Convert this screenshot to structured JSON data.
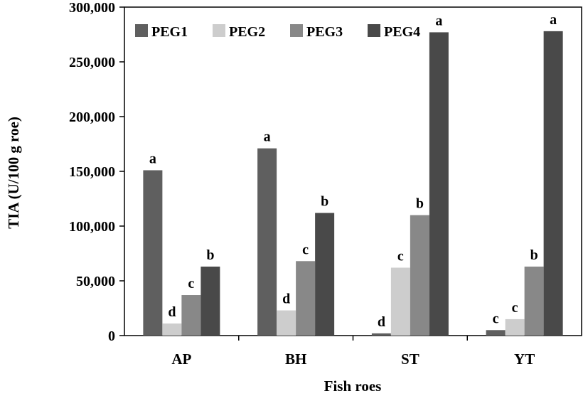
{
  "chart_data": {
    "type": "bar",
    "xlabel": "Fish roes",
    "ylabel": "TIA (U/100 g roe)",
    "ylim": [
      0,
      300000
    ],
    "yticks": [
      0,
      50000,
      100000,
      150000,
      200000,
      250000,
      300000
    ],
    "ytick_labels": [
      "0",
      "50,000",
      "100,000",
      "150,000",
      "200,000",
      "250,000",
      "300,000"
    ],
    "categories": [
      "AP",
      "BH",
      "ST",
      "YT"
    ],
    "legend_position": "top",
    "grid": false,
    "series": [
      {
        "name": "PEG1",
        "color": "#5f5f5f",
        "values": [
          151000,
          171000,
          2000,
          5000
        ],
        "labels": [
          "a",
          "a",
          "d",
          "c"
        ]
      },
      {
        "name": "PEG2",
        "color": "#cdcdcd",
        "values": [
          11000,
          23000,
          62000,
          15000
        ],
        "labels": [
          "d",
          "d",
          "c",
          "c"
        ]
      },
      {
        "name": "PEG3",
        "color": "#888888",
        "values": [
          37000,
          68000,
          110000,
          63000
        ],
        "labels": [
          "c",
          "c",
          "b",
          "b"
        ]
      },
      {
        "name": "PEG4",
        "color": "#494949",
        "values": [
          63000,
          112000,
          277000,
          278000
        ],
        "labels": [
          "b",
          "b",
          "a",
          "a"
        ]
      }
    ]
  }
}
